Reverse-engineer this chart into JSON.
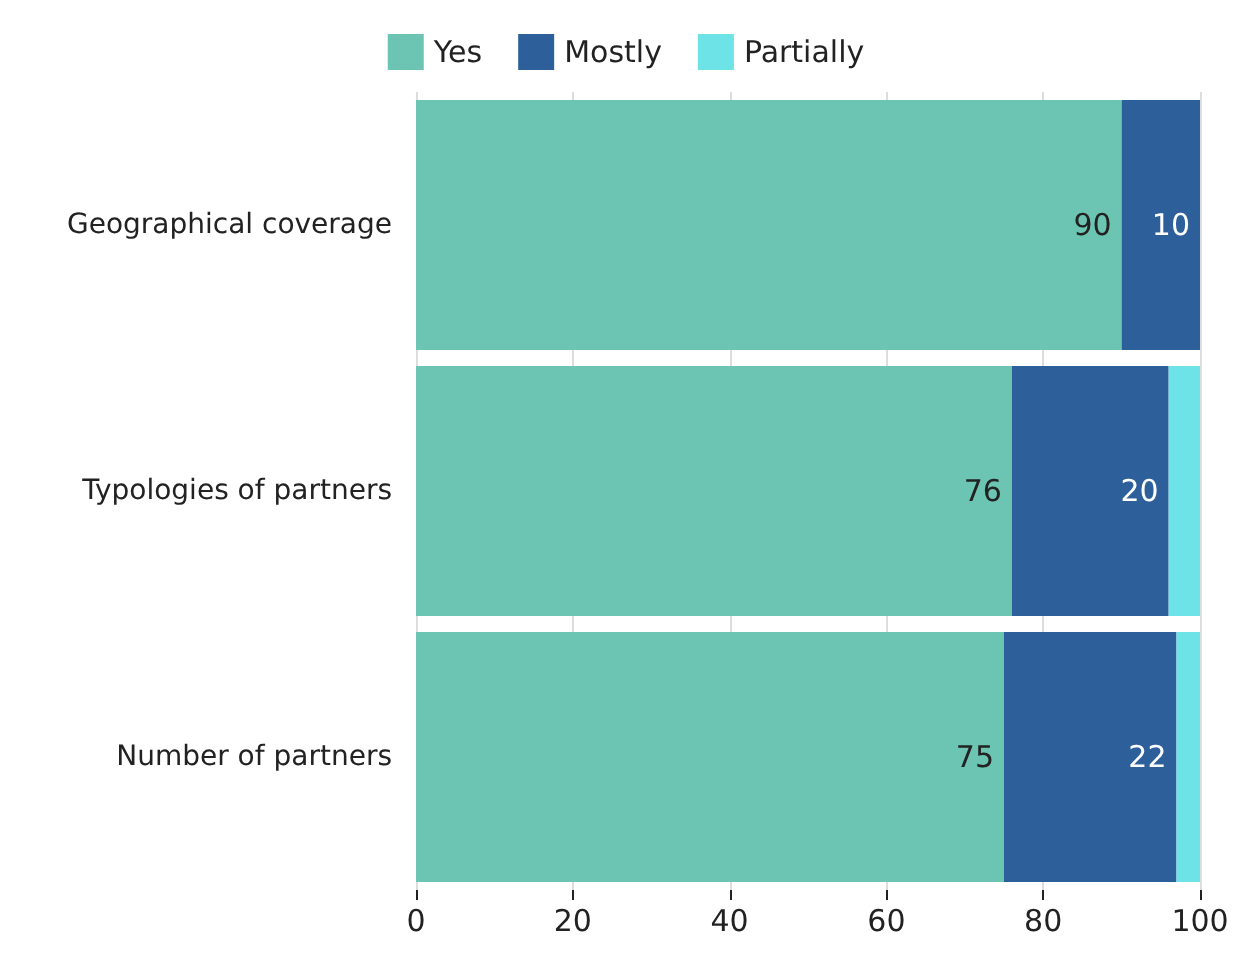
{
  "chart_data": {
    "type": "bar",
    "orientation": "horizontal",
    "stacked": true,
    "categories": [
      "Geographical coverage",
      "Typologies of partners",
      "Number of partners"
    ],
    "series": [
      {
        "name": "Yes",
        "color": "#6cc4b2",
        "values": [
          90,
          76,
          75
        ],
        "value_labels": [
          "90",
          "76",
          "75"
        ]
      },
      {
        "name": "Mostly",
        "color": "#2d5f9a",
        "values": [
          10,
          20,
          22
        ],
        "value_labels": [
          "10",
          "20",
          "22"
        ]
      },
      {
        "name": "Partially",
        "color": "#6de3e8",
        "values": [
          0,
          4,
          3
        ],
        "value_labels": [
          null,
          null,
          null
        ]
      }
    ],
    "xlim": [
      0,
      100
    ],
    "xticks": [
      0,
      20,
      40,
      60,
      80,
      100
    ],
    "grid": "x",
    "legend": "top"
  }
}
